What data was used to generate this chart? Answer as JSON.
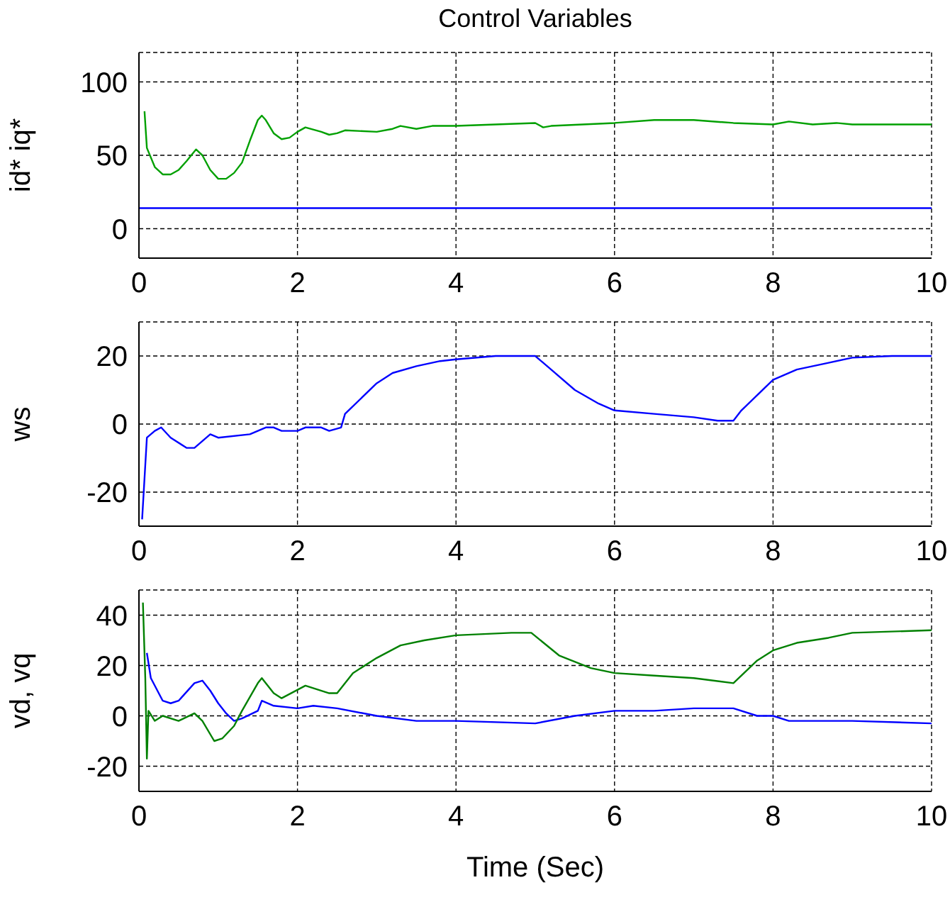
{
  "chart_data": [
    {
      "type": "line",
      "title": "Control Variables",
      "ylabel": "id* iq*",
      "xlim": [
        0,
        10
      ],
      "xticks": [
        0,
        2,
        4,
        6,
        8,
        10
      ],
      "ylim": [
        -20,
        120
      ],
      "yticks": [
        0,
        50,
        100
      ],
      "grid": true,
      "marker": "none",
      "line_style": "solid",
      "series": [
        {
          "color": "#00a000",
          "x": [
            0.07,
            0.1,
            0.2,
            0.3,
            0.4,
            0.5,
            0.6,
            0.72,
            0.8,
            0.9,
            1.0,
            1.1,
            1.2,
            1.3,
            1.4,
            1.5,
            1.55,
            1.6,
            1.7,
            1.8,
            1.9,
            2.0,
            2.1,
            2.3,
            2.4,
            2.5,
            2.6,
            3.0,
            3.2,
            3.3,
            3.5,
            3.7,
            4.0,
            4.5,
            5.0,
            5.1,
            5.2,
            6.0,
            6.5,
            7.0,
            7.5,
            8.0,
            8.2,
            8.5,
            8.8,
            9.0,
            10
          ],
          "values": [
            80,
            55,
            42,
            37,
            37,
            40,
            46,
            54,
            50,
            40,
            34,
            34,
            38,
            45,
            60,
            74,
            77,
            74,
            65,
            61,
            62,
            66,
            69,
            66,
            64,
            65,
            67,
            66,
            68,
            70,
            68,
            70,
            70,
            71,
            72,
            69,
            70,
            72,
            74,
            74,
            72,
            71,
            73,
            71,
            72,
            71,
            71
          ]
        },
        {
          "color": "#0000ff",
          "x": [
            0,
            10
          ],
          "values": [
            14,
            14
          ]
        }
      ]
    },
    {
      "type": "line",
      "ylabel": "ws",
      "xlim": [
        0,
        10
      ],
      "xticks": [
        0,
        2,
        4,
        6,
        8,
        10
      ],
      "ylim": [
        -30,
        30
      ],
      "yticks": [
        -20,
        0,
        20
      ],
      "grid": true,
      "marker": "none",
      "line_style": "solid",
      "series": [
        {
          "color": "#0000ff",
          "x": [
            0.04,
            0.1,
            0.2,
            0.28,
            0.4,
            0.6,
            0.7,
            0.9,
            1.0,
            1.4,
            1.6,
            1.7,
            1.8,
            2.0,
            2.1,
            2.3,
            2.4,
            2.55,
            2.6,
            3.0,
            3.2,
            3.5,
            3.8,
            4.0,
            4.5,
            5.0,
            5.2,
            5.5,
            5.8,
            6.0,
            6.5,
            7.0,
            7.3,
            7.5,
            7.6,
            8.0,
            8.3,
            8.7,
            9.0,
            9.5,
            10
          ],
          "values": [
            -28,
            -4,
            -2,
            -1,
            -4,
            -7,
            -7,
            -3,
            -4,
            -3,
            -1,
            -1,
            -2,
            -2,
            -1,
            -1,
            -2,
            -1,
            3,
            12,
            15,
            17,
            18.5,
            19,
            20,
            20,
            16,
            10,
            6,
            4,
            3,
            2,
            1,
            1,
            4,
            13,
            16,
            18,
            19.5,
            20,
            20
          ]
        }
      ]
    },
    {
      "type": "line",
      "ylabel": "vd, vq",
      "xlabel": "Time (Sec)",
      "xlim": [
        0,
        10
      ],
      "xticks": [
        0,
        2,
        4,
        6,
        8,
        10
      ],
      "ylim": [
        -30,
        50
      ],
      "yticks": [
        -20,
        0,
        20,
        40
      ],
      "grid": true,
      "marker": "none",
      "line_style": "solid",
      "series": [
        {
          "color": "#0000ff",
          "x": [
            0.1,
            0.15,
            0.3,
            0.4,
            0.5,
            0.7,
            0.8,
            0.9,
            1.0,
            1.1,
            1.2,
            1.3,
            1.5,
            1.55,
            1.7,
            2.0,
            2.2,
            2.5,
            3.0,
            3.5,
            4.0,
            5.0,
            5.5,
            6.0,
            6.5,
            7.0,
            7.5,
            7.8,
            8.0,
            8.2,
            9.0,
            10
          ],
          "values": [
            25,
            15,
            6,
            5,
            6,
            13,
            14,
            10,
            5,
            1,
            -2,
            -1,
            2,
            6,
            4,
            3,
            4,
            3,
            0,
            -2,
            -2,
            -3,
            0,
            2,
            2,
            3,
            3,
            0,
            0,
            -2,
            -2,
            -3
          ]
        },
        {
          "color": "#008000",
          "x": [
            0.05,
            0.08,
            0.1,
            0.12,
            0.2,
            0.3,
            0.5,
            0.7,
            0.8,
            0.95,
            1.05,
            1.2,
            1.3,
            1.5,
            1.55,
            1.7,
            1.8,
            2.1,
            2.4,
            2.5,
            2.7,
            3.0,
            3.3,
            3.6,
            4.0,
            4.7,
            4.95,
            5.3,
            5.7,
            6.0,
            6.5,
            7.0,
            7.5,
            7.8,
            8.0,
            8.3,
            8.7,
            9.0,
            10
          ],
          "values": [
            45,
            15,
            -17,
            2,
            -2,
            0,
            -2,
            1,
            -2,
            -10,
            -9,
            -4,
            2,
            13,
            15,
            9,
            7,
            12,
            9,
            9,
            17,
            23,
            28,
            30,
            32,
            33,
            33,
            24,
            19,
            17,
            16,
            15,
            13,
            22,
            26,
            29,
            31,
            33,
            34
          ]
        }
      ]
    }
  ]
}
